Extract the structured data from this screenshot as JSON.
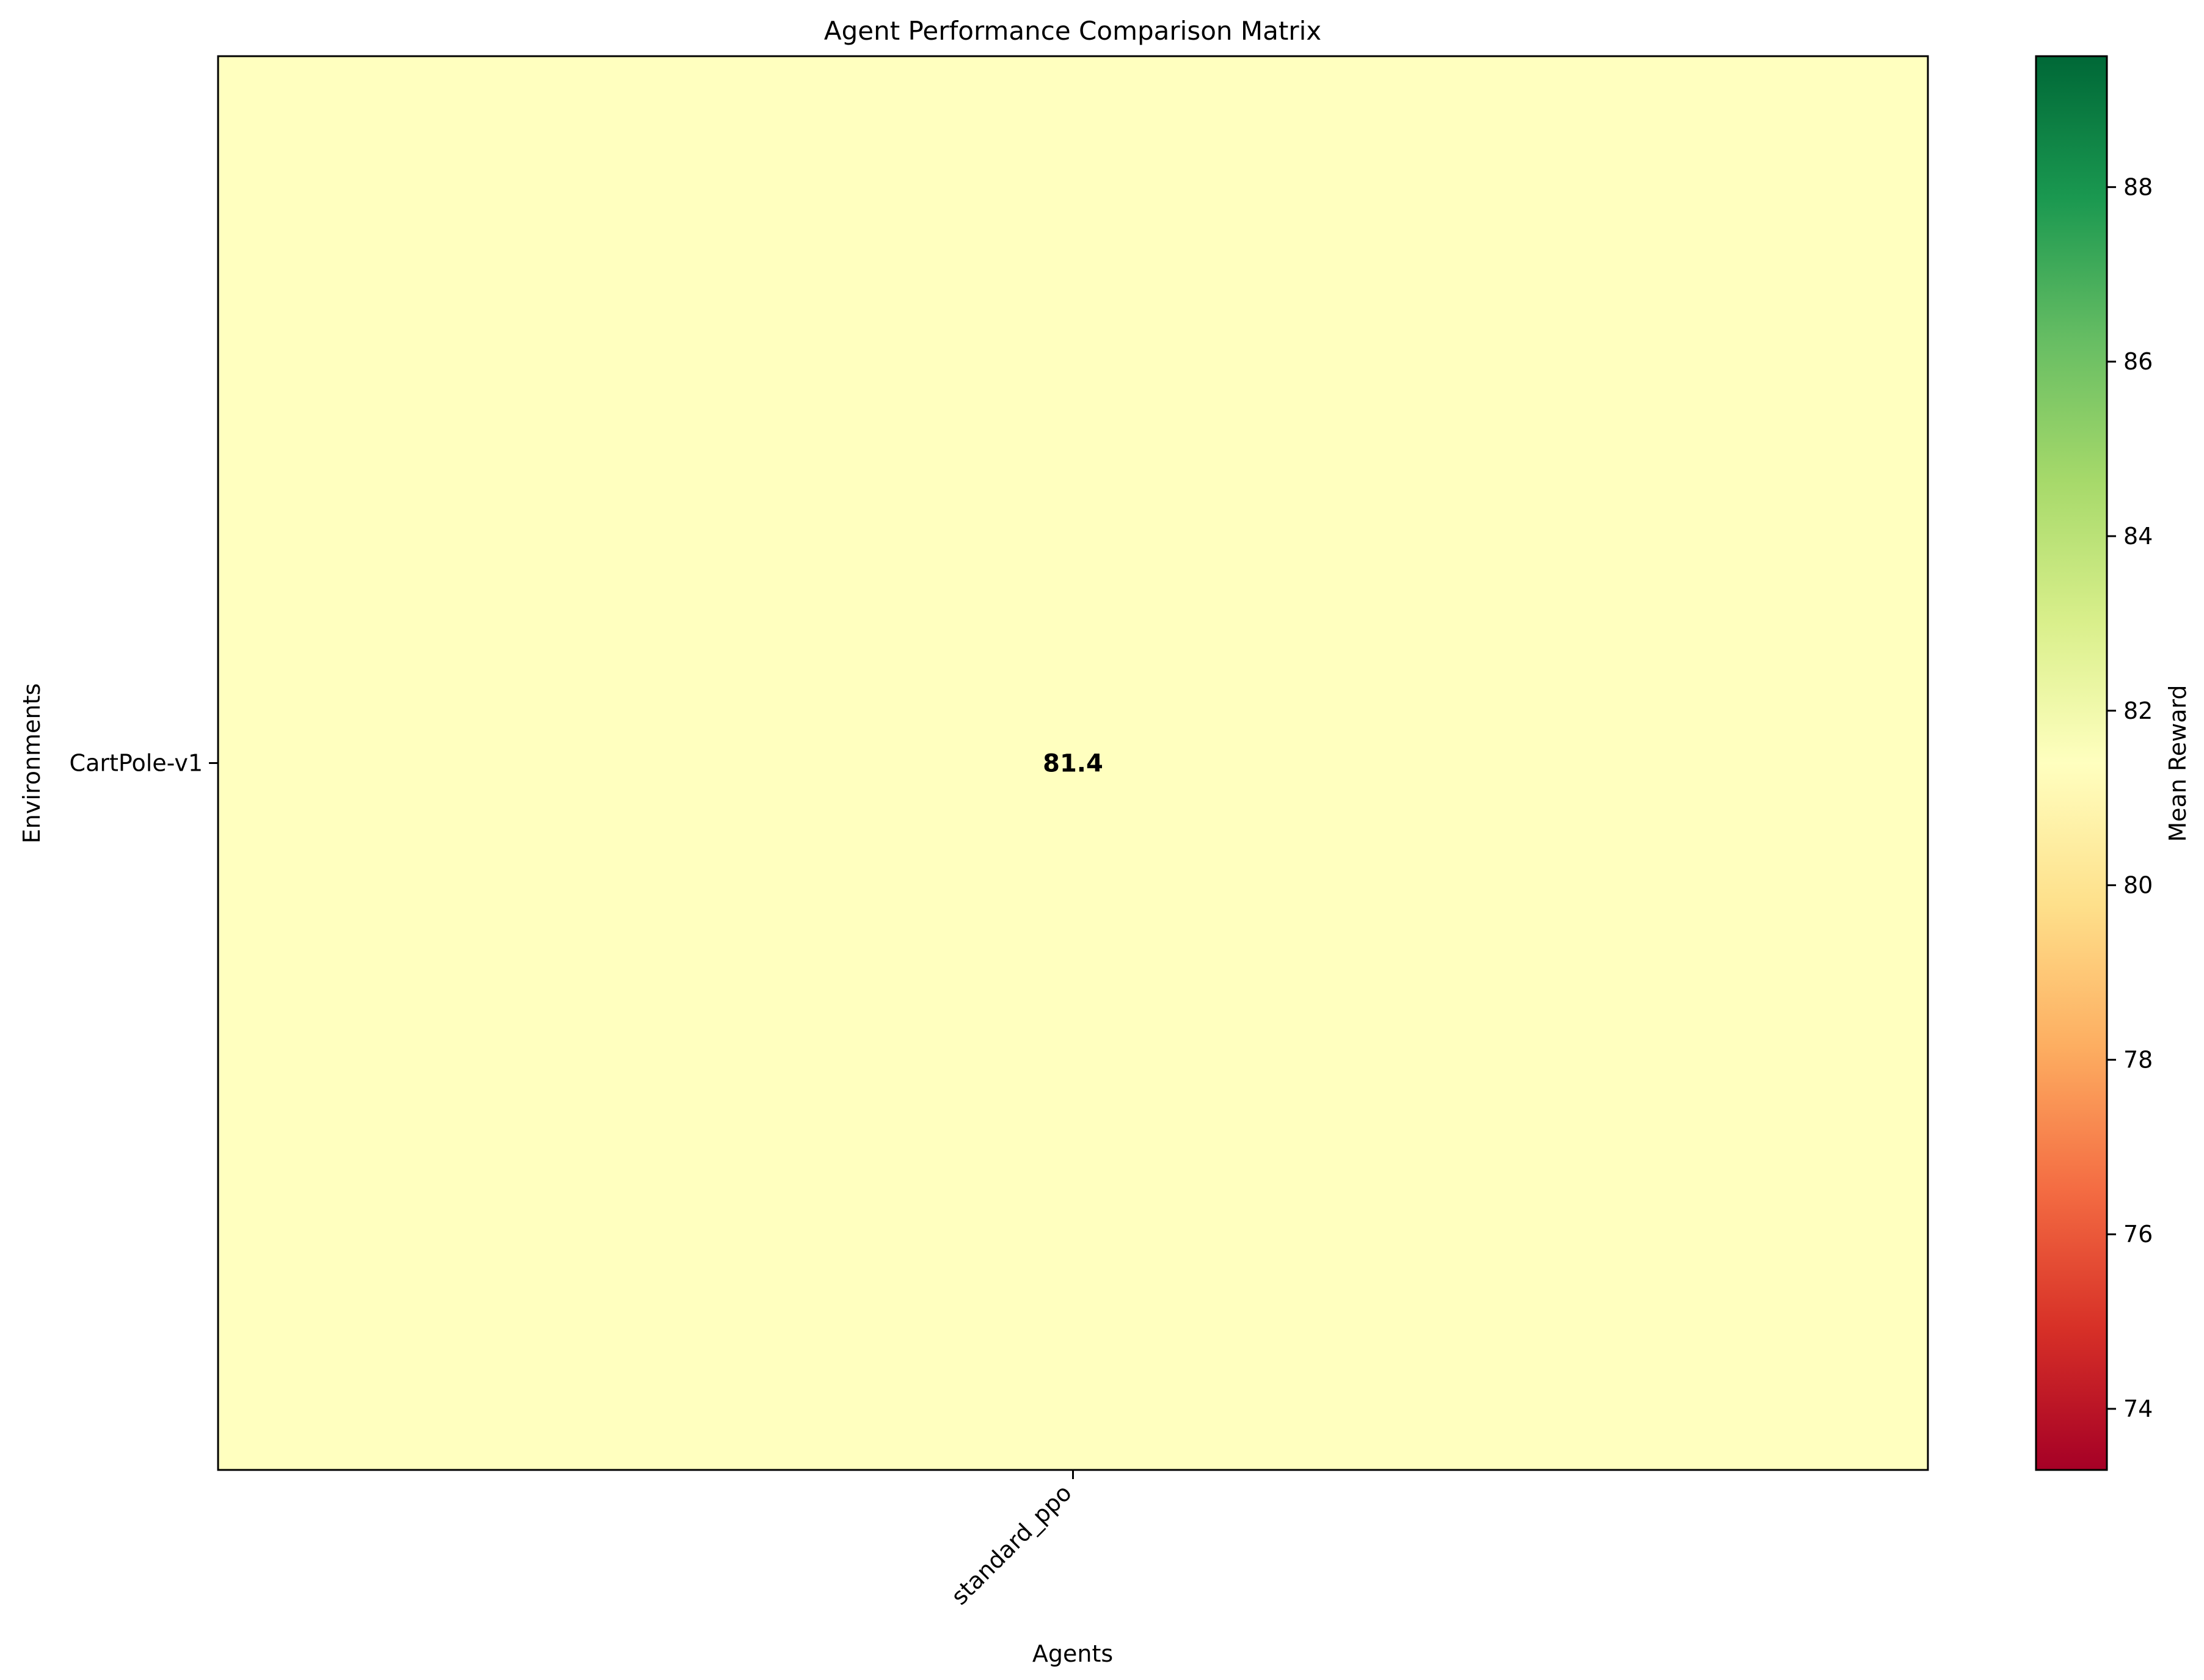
{
  "chart_data": {
    "type": "heatmap",
    "title": "Agent Performance Comparison Matrix",
    "xlabel": "Agents",
    "ylabel": "Environments",
    "x_categories": [
      "standard_ppo"
    ],
    "y_categories": [
      "CartPole-v1"
    ],
    "values": [
      [
        81.4
      ]
    ],
    "cell_labels": [
      [
        "81.4"
      ]
    ],
    "colorbar": {
      "label": "Mean Reward",
      "range": [
        73.3,
        89.5
      ],
      "ticks": [
        74,
        76,
        78,
        80,
        82,
        84,
        86,
        88
      ],
      "colormap": "RdYlGn",
      "stops": [
        "#a50026",
        "#d73027",
        "#f46d43",
        "#fdae61",
        "#fee08b",
        "#ffffbf",
        "#d9ef8b",
        "#a6d96a",
        "#66bd63",
        "#1a9850",
        "#006837"
      ]
    },
    "grid": false
  }
}
